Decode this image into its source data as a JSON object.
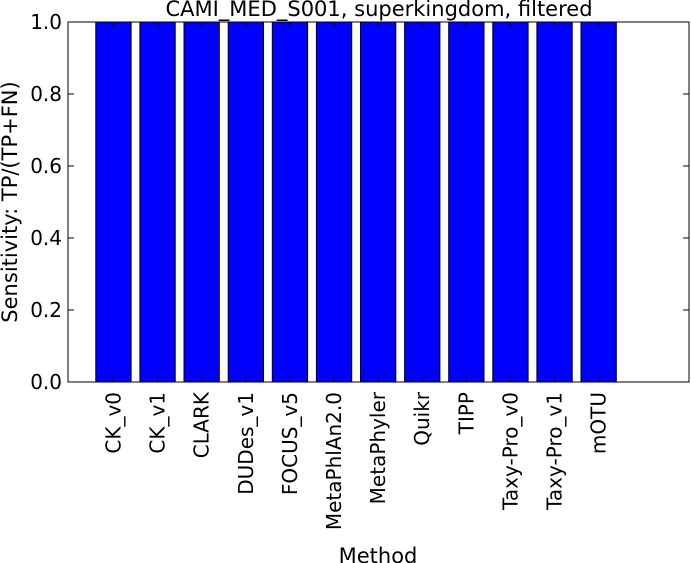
{
  "chart_data": {
    "type": "bar",
    "title": "CAMI_MED_S001, superkingdom, filtered",
    "xlabel": "Method",
    "ylabel": "Sensitivity: TP/(TP+FN)",
    "categories": [
      "CK_v0",
      "CK_v1",
      "CLARK",
      "DUDes_v1",
      "FOCUS_v5",
      "MetaPhlAn2.0",
      "MetaPhyler",
      "Quikr",
      "TIPP",
      "Taxy-Pro_v0",
      "Taxy-Pro_v1",
      "mOTU"
    ],
    "values": [
      1.0,
      1.0,
      1.0,
      1.0,
      1.0,
      1.0,
      1.0,
      1.0,
      1.0,
      1.0,
      1.0,
      1.0
    ],
    "ylim": [
      0.0,
      1.0
    ],
    "yticks": [
      "0.0",
      "0.2",
      "0.4",
      "0.6",
      "0.8",
      "1.0"
    ],
    "bar_color": "#0000ff",
    "grid": false
  }
}
